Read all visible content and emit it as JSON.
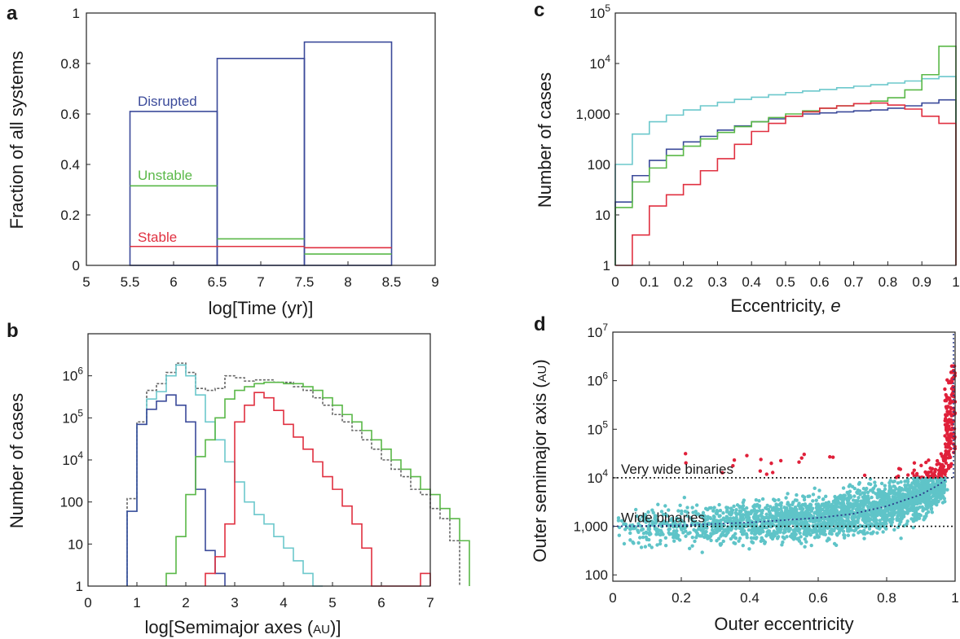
{
  "colors": {
    "disrupted": "#3b4a9a",
    "unstable": "#5ab848",
    "stable": "#e03040",
    "cyan": "#6cc8cc",
    "total": "#666666",
    "scatter_cyan": "#5fc4c8",
    "scatter_red": "#e0203a",
    "median": "#2a3a8a"
  },
  "chart_data": [
    {
      "panel": "a",
      "type": "bar",
      "xlabel": "log[Time (yr)]",
      "ylabel": "Fraction of all systems",
      "xlim": [
        5,
        9
      ],
      "ylim": [
        0,
        1
      ],
      "xticks": [
        "5",
        "5.5",
        "6",
        "6.5",
        "7",
        "7.5",
        "8",
        "8.5",
        "9"
      ],
      "yticks": [
        "0",
        "0.2",
        "0.4",
        "0.6",
        "0.8",
        "1"
      ],
      "bins": [
        [
          5.5,
          6.5
        ],
        [
          6.5,
          7.5
        ],
        [
          7.5,
          8.5
        ]
      ],
      "series": [
        {
          "name": "Disrupted",
          "color_key": "disrupted",
          "values": [
            0.61,
            0.82,
            0.885
          ],
          "style": "box"
        },
        {
          "name": "Unstable",
          "color_key": "unstable",
          "values": [
            0.315,
            0.105,
            0.045
          ],
          "style": "level"
        },
        {
          "name": "Stable",
          "color_key": "stable",
          "values": [
            0.075,
            0.075,
            0.07
          ],
          "style": "level"
        }
      ]
    },
    {
      "panel": "b",
      "type": "line",
      "step": true,
      "xlabel_main": "log[Semimajor axes (",
      "xlabel_unit": "AU",
      "xlabel_end": ")]",
      "ylabel": "Number of cases",
      "yscale": "log",
      "xlim": [
        0,
        7
      ],
      "ylim_log10": [
        0,
        6
      ],
      "xticks": [
        "0",
        "1",
        "2",
        "3",
        "4",
        "5",
        "6",
        "7"
      ],
      "yticks": [
        {
          "base": "1",
          "exp": ""
        },
        {
          "base": "10",
          "exp": ""
        },
        {
          "base": "100",
          "exp": ""
        },
        {
          "base": "10",
          "exp": "4"
        },
        {
          "base": "10",
          "exp": "5"
        },
        {
          "base": "10",
          "exp": "6"
        }
      ],
      "bin_start": 0.8,
      "bin_width": 0.2,
      "series": [
        {
          "color_key": "total",
          "dashed": true,
          "values": [
            120,
            8000,
            45000,
            65000,
            120000,
            200000,
            120000,
            50000,
            45000,
            50000,
            100000,
            90000,
            75000,
            80000,
            80000,
            70000,
            70000,
            55000,
            45000,
            30000,
            20000,
            12000,
            8000,
            5000,
            3000,
            1800,
            1000,
            600,
            400,
            200,
            150,
            70,
            40,
            12
          ]
        },
        {
          "color_key": "cyan",
          "values": [
            60,
            7000,
            28000,
            42000,
            100000,
            180000,
            100000,
            35000,
            8000,
            3000,
            900,
            300,
            100,
            50,
            30,
            15,
            8,
            4,
            2,
            1
          ]
        },
        {
          "color_key": "disrupted",
          "values": [
            60,
            7000,
            16000,
            25000,
            35000,
            20000,
            8000,
            200,
            7,
            2
          ]
        },
        {
          "color_key": "unstable",
          "start_bin": 4,
          "values": [
            2,
            15,
            150,
            1200,
            3000,
            10000,
            28000,
            45000,
            55000,
            65000,
            70000,
            70000,
            65000,
            65000,
            55000,
            45000,
            30000,
            20000,
            12000,
            8000,
            5000,
            3000,
            1800,
            1000,
            600,
            400,
            200,
            150,
            70,
            40,
            12
          ]
        },
        {
          "color_key": "stable",
          "start_bin": 8,
          "values": [
            2,
            5,
            30,
            8000,
            20000,
            40000,
            30000,
            15000,
            7000,
            3500,
            1800,
            900,
            400,
            200,
            80,
            30,
            8,
            1,
            1,
            1,
            1,
            1,
            2
          ]
        }
      ]
    },
    {
      "panel": "c",
      "type": "line",
      "step": true,
      "xlabel_main": "Eccentricity, ",
      "xlabel_var": "e",
      "ylabel": "Number of cases",
      "yscale": "log",
      "xlim": [
        0,
        1
      ],
      "ylim_log10": [
        0,
        5
      ],
      "xticks": [
        "0",
        "0.1",
        "0.2",
        "0.3",
        "0.4",
        "0.5",
        "0.6",
        "0.7",
        "0.8",
        "0.9",
        "1"
      ],
      "yticks": [
        {
          "base": "1",
          "exp": ""
        },
        {
          "base": "10",
          "exp": ""
        },
        {
          "base": "100",
          "exp": ""
        },
        {
          "base": "1,000",
          "exp": ""
        },
        {
          "base": "10",
          "exp": "4"
        },
        {
          "base": "10",
          "exp": "5"
        }
      ],
      "bin_width": 0.05,
      "series": [
        {
          "color_key": "cyan",
          "values": [
            100,
            400,
            700,
            950,
            1200,
            1450,
            1700,
            1950,
            2150,
            2400,
            2650,
            2850,
            3050,
            3300,
            3550,
            3800,
            4100,
            4500,
            5000,
            5500
          ]
        },
        {
          "color_key": "disrupted",
          "values": [
            18,
            60,
            120,
            200,
            280,
            360,
            480,
            580,
            700,
            800,
            900,
            1000,
            1050,
            1100,
            1150,
            1200,
            1300,
            1450,
            1650,
            1900
          ]
        },
        {
          "color_key": "unstable",
          "values": [
            14,
            45,
            85,
            150,
            230,
            320,
            430,
            560,
            700,
            850,
            1000,
            1150,
            1300,
            1450,
            1600,
            1800,
            2100,
            3000,
            6000,
            22000
          ]
        },
        {
          "color_key": "stable",
          "values": [
            1,
            4,
            15,
            25,
            40,
            75,
            130,
            250,
            450,
            650,
            900,
            1100,
            1300,
            1450,
            1600,
            1650,
            1500,
            1250,
            900,
            650
          ]
        }
      ]
    },
    {
      "panel": "d",
      "type": "scatter",
      "xlabel": "Outer eccentricity",
      "ylabel_main": "Outer semimajor axis (",
      "ylabel_unit": "AU",
      "ylabel_end": ")",
      "yscale": "log",
      "xlim": [
        0,
        1
      ],
      "ylim_log10": [
        1.87,
        7
      ],
      "xticks": [
        "0",
        "0.2",
        "0.4",
        "0.6",
        "0.8",
        "1"
      ],
      "yticks": [
        {
          "base": "100",
          "exp": "",
          "log": 2
        },
        {
          "base": "1,000",
          "exp": "",
          "log": 3
        },
        {
          "base": "10",
          "exp": "4",
          "log": 4
        },
        {
          "base": "10",
          "exp": "5",
          "log": 5
        },
        {
          "base": "10",
          "exp": "6",
          "log": 6
        },
        {
          "base": "10",
          "exp": "7",
          "log": 7
        }
      ],
      "thresholds": [
        {
          "label": "Very wide binaries",
          "value": 10000
        },
        {
          "label": "Wide binaries",
          "value": 1000
        }
      ],
      "series": [
        {
          "color_key": "scatter_cyan",
          "role": "wide binaries",
          "range": [
            100,
            10000
          ]
        },
        {
          "color_key": "scatter_red",
          "role": "very wide binaries",
          "range": [
            10000,
            1000000
          ]
        }
      ],
      "median_curve": [
        [
          0.0,
          1000
        ],
        [
          0.2,
          1050
        ],
        [
          0.4,
          1200
        ],
        [
          0.6,
          1500
        ],
        [
          0.7,
          1800
        ],
        [
          0.8,
          2600
        ],
        [
          0.9,
          4500
        ],
        [
          0.95,
          7000
        ],
        [
          0.98,
          10000
        ]
      ]
    }
  ]
}
